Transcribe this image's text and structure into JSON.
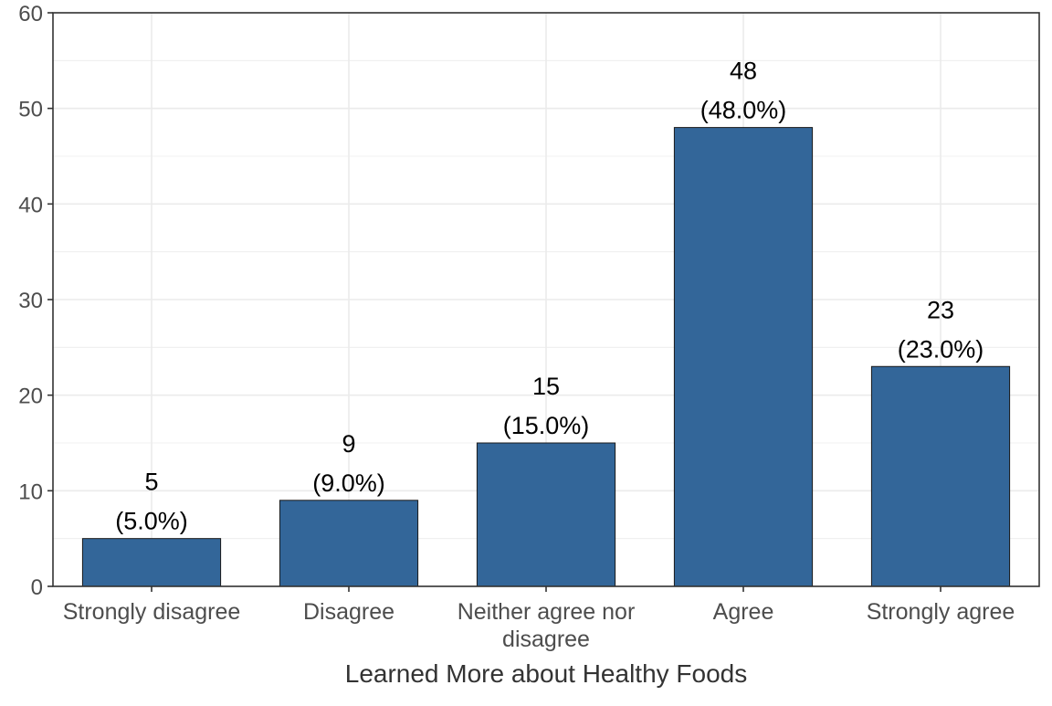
{
  "chart_data": {
    "type": "bar",
    "title": "",
    "xlabel": "Learned More about Healthy Foods",
    "ylabel": "",
    "categories": [
      "Strongly disagree",
      "Disagree",
      "Neither agree nor disagree",
      "Agree",
      "Strongly agree"
    ],
    "category_label_lines": [
      [
        "Strongly disagree"
      ],
      [
        "Disagree"
      ],
      [
        "Neither agree nor",
        "disagree"
      ],
      [
        "Agree"
      ],
      [
        "Strongly agree"
      ]
    ],
    "values": [
      5,
      9,
      15,
      48,
      23
    ],
    "percent_labels": [
      "(5.0%)",
      "(9.0%)",
      "(15.0%)",
      "(48.0%)",
      "(23.0%)"
    ],
    "ylim": [
      0,
      60
    ],
    "yticks": [
      0,
      10,
      20,
      30,
      40,
      50,
      60
    ],
    "grid": true,
    "legend": "none",
    "colors": {
      "bar_fill": "#336699",
      "bar_stroke": "#1a1a1a",
      "grid": "#ebebeb",
      "panel_border": "#333333"
    }
  }
}
